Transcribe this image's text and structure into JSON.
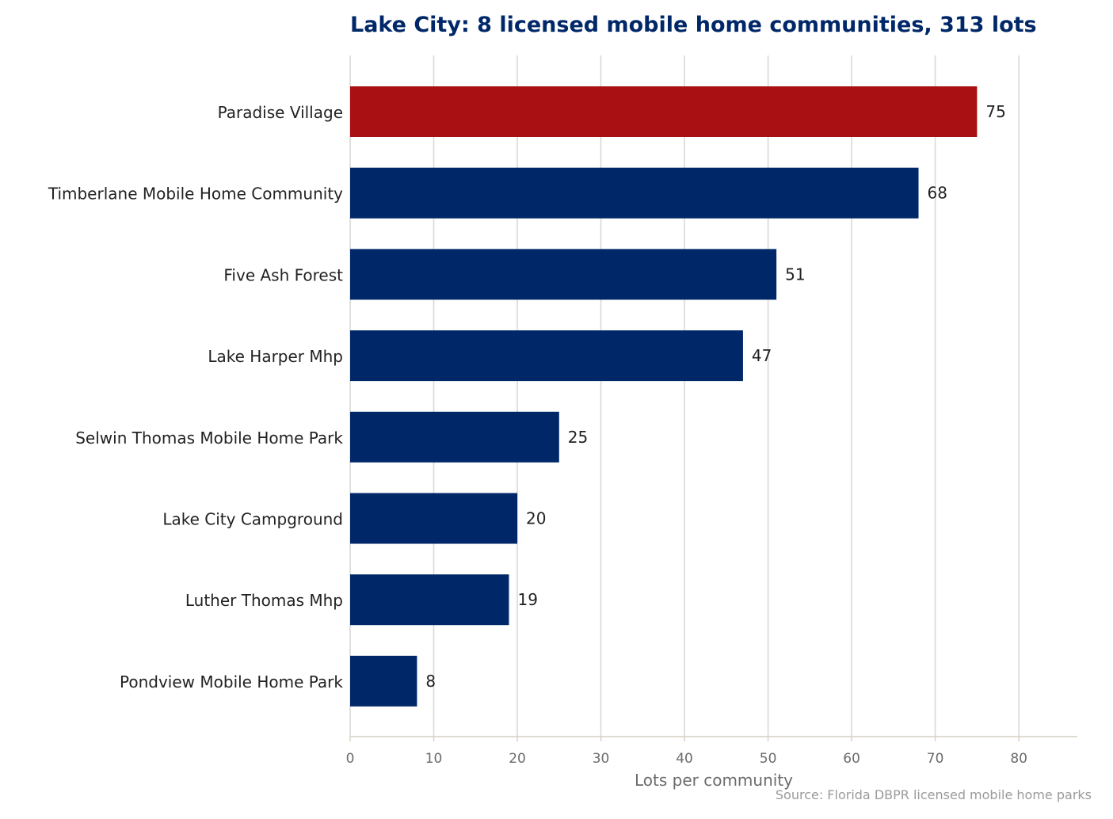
{
  "chart_data": {
    "type": "bar",
    "orientation": "horizontal",
    "title": "Lake City: 8 licensed mobile home communities, 313 lots",
    "xlabel": "Lots per community",
    "ylabel": "",
    "source": "Source: Florida DBPR licensed mobile home parks",
    "categories": [
      "Paradise Village",
      "Timberlane Mobile Home Community",
      "Five Ash Forest",
      "Lake Harper Mhp",
      "Selwin Thomas Mobile Home Park",
      "Lake City Campground",
      "Luther Thomas Mhp",
      "Pondview Mobile Home Park"
    ],
    "values": [
      75,
      68,
      51,
      47,
      25,
      20,
      19,
      8
    ],
    "highlight_index": 0,
    "xlim": [
      0,
      87
    ],
    "xticks": [
      0,
      10,
      20,
      30,
      40,
      50,
      60,
      70,
      80
    ],
    "grid": "vertical",
    "legend": "none",
    "colors": {
      "bar": "#002868",
      "highlight": "#a81014",
      "title": "#002868"
    }
  }
}
